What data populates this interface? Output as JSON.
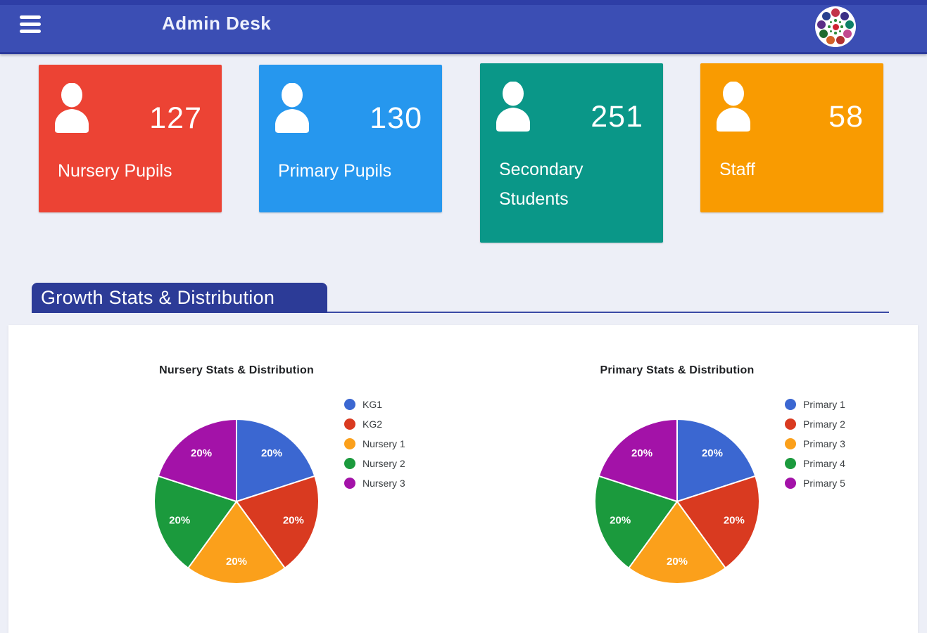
{
  "navbar": {
    "title": "Admin Desk",
    "bg_color": "#3b4eb4",
    "bg_top_color": "#2e3ea6",
    "bg_border_color": "#2b3a9c"
  },
  "logo": {
    "outer_colors": [
      "#c2344a",
      "#3c2f86",
      "#0d7f67",
      "#c2498f",
      "#b03030",
      "#d2622a",
      "#1f6b2f",
      "#5b2d86",
      "#28418f"
    ],
    "center_color": "#cf2233",
    "accent_color": "#2e8b3a"
  },
  "cards": [
    {
      "label": "Nursery Pupils",
      "value": "127",
      "color": "#ec4334",
      "icon": "person-icon"
    },
    {
      "label": "Primary Pupils",
      "value": "130",
      "color": "#2697ee",
      "icon": "person-icon"
    },
    {
      "label": "Secondary Students",
      "value": "251",
      "color": "#0a9788",
      "icon": "person-icon"
    },
    {
      "label": "Staff",
      "value": "58",
      "color": "#f99b01",
      "icon": "person-icon"
    }
  ],
  "section": {
    "title": "Growth Stats & Distribution",
    "accent_color": "#2c3b97",
    "line_color": "#3a4aa5"
  },
  "chart_data": [
    {
      "type": "pie",
      "title": "Nursery Stats & Distribution",
      "labels": [
        "KG1",
        "KG2",
        "Nursery 1",
        "Nursery 2",
        "Nursery 3"
      ],
      "values": [
        20,
        20,
        20,
        20,
        20
      ],
      "slice_labels": [
        "20%",
        "20%",
        "20%",
        "20%",
        "20%"
      ],
      "colors": [
        "#3b67d1",
        "#d93a20",
        "#fba01b",
        "#1b9a3d",
        "#a312a8"
      ],
      "legend_position": "right",
      "start_angle_deg": 0,
      "direction": "clockwise"
    },
    {
      "type": "pie",
      "title": "Primary Stats & Distribution",
      "labels": [
        "Primary 1",
        "Primary 2",
        "Primary 3",
        "Primary 4",
        "Primary 5"
      ],
      "values": [
        20,
        20,
        20,
        20,
        20
      ],
      "slice_labels": [
        "20%",
        "20%",
        "20%",
        "20%",
        "20%"
      ],
      "colors": [
        "#3b67d1",
        "#d93a20",
        "#fba01b",
        "#1b9a3d",
        "#a312a8"
      ],
      "legend_position": "right",
      "start_angle_deg": 0,
      "direction": "clockwise"
    }
  ]
}
